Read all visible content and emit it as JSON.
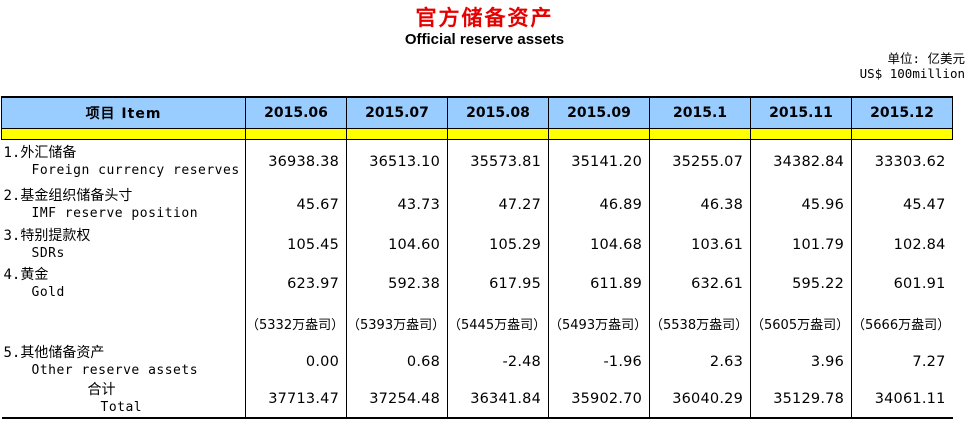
{
  "title": {
    "zh": "官方储备资产",
    "en": "Official reserve assets"
  },
  "unit": {
    "zh": "单位: 亿美元",
    "en": "US$ 100million"
  },
  "colors": {
    "header_bg": "#99CCFF",
    "band": "#FFFF00",
    "title_red": "#E60000",
    "border": "#000000"
  },
  "table": {
    "item_header": "项目 Item",
    "columns": [
      "2015.06",
      "2015.07",
      "2015.08",
      "2015.09",
      "2015.1",
      "2015.11",
      "2015.12"
    ],
    "rows": [
      {
        "zh": "1.外汇储备",
        "en": "Foreign currency reserves",
        "values": [
          "36938.38",
          "36513.10",
          "35573.81",
          "35141.20",
          "35255.07",
          "34382.84",
          "33303.62"
        ]
      },
      {
        "zh": "2.基金组织储备头寸",
        "en": "IMF reserve position",
        "values": [
          "45.67",
          "43.73",
          "47.27",
          "46.89",
          "46.38",
          "45.96",
          "45.47"
        ]
      },
      {
        "zh": "3.特别提款权",
        "en": "SDRs",
        "values": [
          "105.45",
          "104.60",
          "105.29",
          "104.68",
          "103.61",
          "101.79",
          "102.84"
        ]
      },
      {
        "zh": "4.黄金",
        "en": "Gold",
        "values": [
          "623.97",
          "592.38",
          "617.95",
          "611.89",
          "632.61",
          "595.22",
          "601.91"
        ]
      },
      {
        "zh": "",
        "en": "",
        "values": [
          "（5332万盎司）",
          "（5393万盎司）",
          "（5445万盎司）",
          "（5493万盎司）",
          "（5538万盎司）",
          "（5605万盎司）",
          "（5666万盎司）"
        ]
      },
      {
        "zh": "5.其他储备资产",
        "en": "Other reserve assets",
        "values": [
          "0.00",
          "0.68",
          "-2.48",
          "-1.96",
          "2.63",
          "3.96",
          "7.27"
        ]
      },
      {
        "zh": "合计",
        "en": "Total",
        "values": [
          "37713.47",
          "37254.48",
          "36341.84",
          "35902.70",
          "36040.29",
          "35129.78",
          "34061.11"
        ]
      }
    ]
  }
}
